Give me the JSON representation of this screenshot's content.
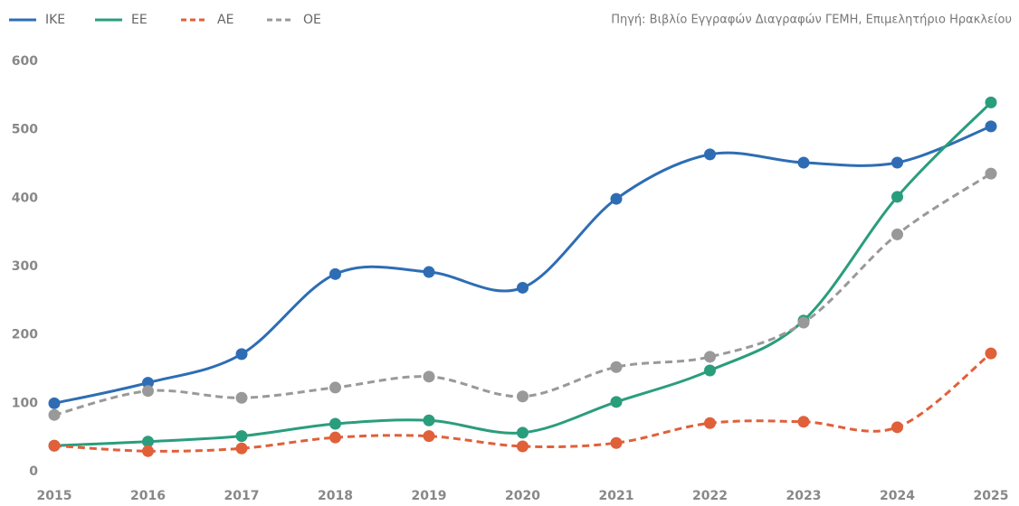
{
  "chart_data": {
    "type": "line",
    "source": "Πηγή: Βιβλίο Εγγραφών  Διαγραφών ΓΕΜΗ, Επιμελητήριο Ηρακλείου",
    "categories": [
      "2015",
      "2016",
      "2017",
      "2018",
      "2019",
      "2020",
      "2021",
      "2022",
      "2023",
      "2024",
      "2025"
    ],
    "series": [
      {
        "name": "IKE",
        "color": "#2e6db4",
        "dashed": false,
        "values": [
          100,
          130,
          172,
          289,
          292,
          269,
          399,
          464,
          452,
          452,
          505
        ]
      },
      {
        "name": "EE",
        "color": "#2a9d7c",
        "dashed": false,
        "values": [
          38,
          44,
          52,
          70,
          75,
          57,
          102,
          148,
          221,
          402,
          540
        ]
      },
      {
        "name": "AE",
        "color": "#e0603a",
        "dashed": true,
        "values": [
          38,
          30,
          34,
          50,
          52,
          37,
          42,
          71,
          73,
          65,
          173
        ]
      },
      {
        "name": "OE",
        "color": "#999999",
        "dashed": true,
        "values": [
          83,
          118,
          108,
          123,
          139,
          110,
          153,
          168,
          218,
          347,
          436
        ]
      }
    ],
    "ylim": [
      0,
      600
    ],
    "yticks": [
      0,
      100,
      200,
      300,
      400,
      500,
      600
    ],
    "grid": false,
    "legend": "top-left"
  }
}
